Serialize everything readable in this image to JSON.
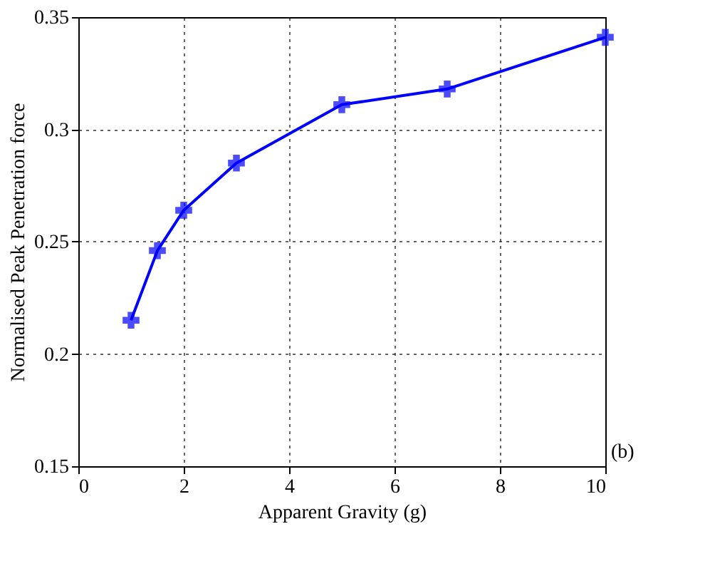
{
  "chart_data": {
    "type": "line",
    "xlabel": "Apparent Gravity (g)",
    "ylabel": "Normalised Peak Penetration force",
    "x": [
      1,
      1.5,
      2,
      3,
      5,
      7,
      10
    ],
    "series": [
      {
        "color": "#0000ff",
        "values": [
          0.215,
          0.246,
          0.264,
          0.285,
          0.311,
          0.318,
          0.341
        ]
      }
    ],
    "xlim": [
      0,
      10
    ],
    "xticks": [
      0,
      2,
      4,
      6,
      8,
      10
    ],
    "ylim": [
      0.15,
      0.35
    ],
    "yticks": [
      0.15,
      0.2,
      0.25,
      0.3,
      0.35
    ],
    "grid": true,
    "marker": "cross",
    "line_style": "solid",
    "annotations": [
      "(b)"
    ]
  }
}
